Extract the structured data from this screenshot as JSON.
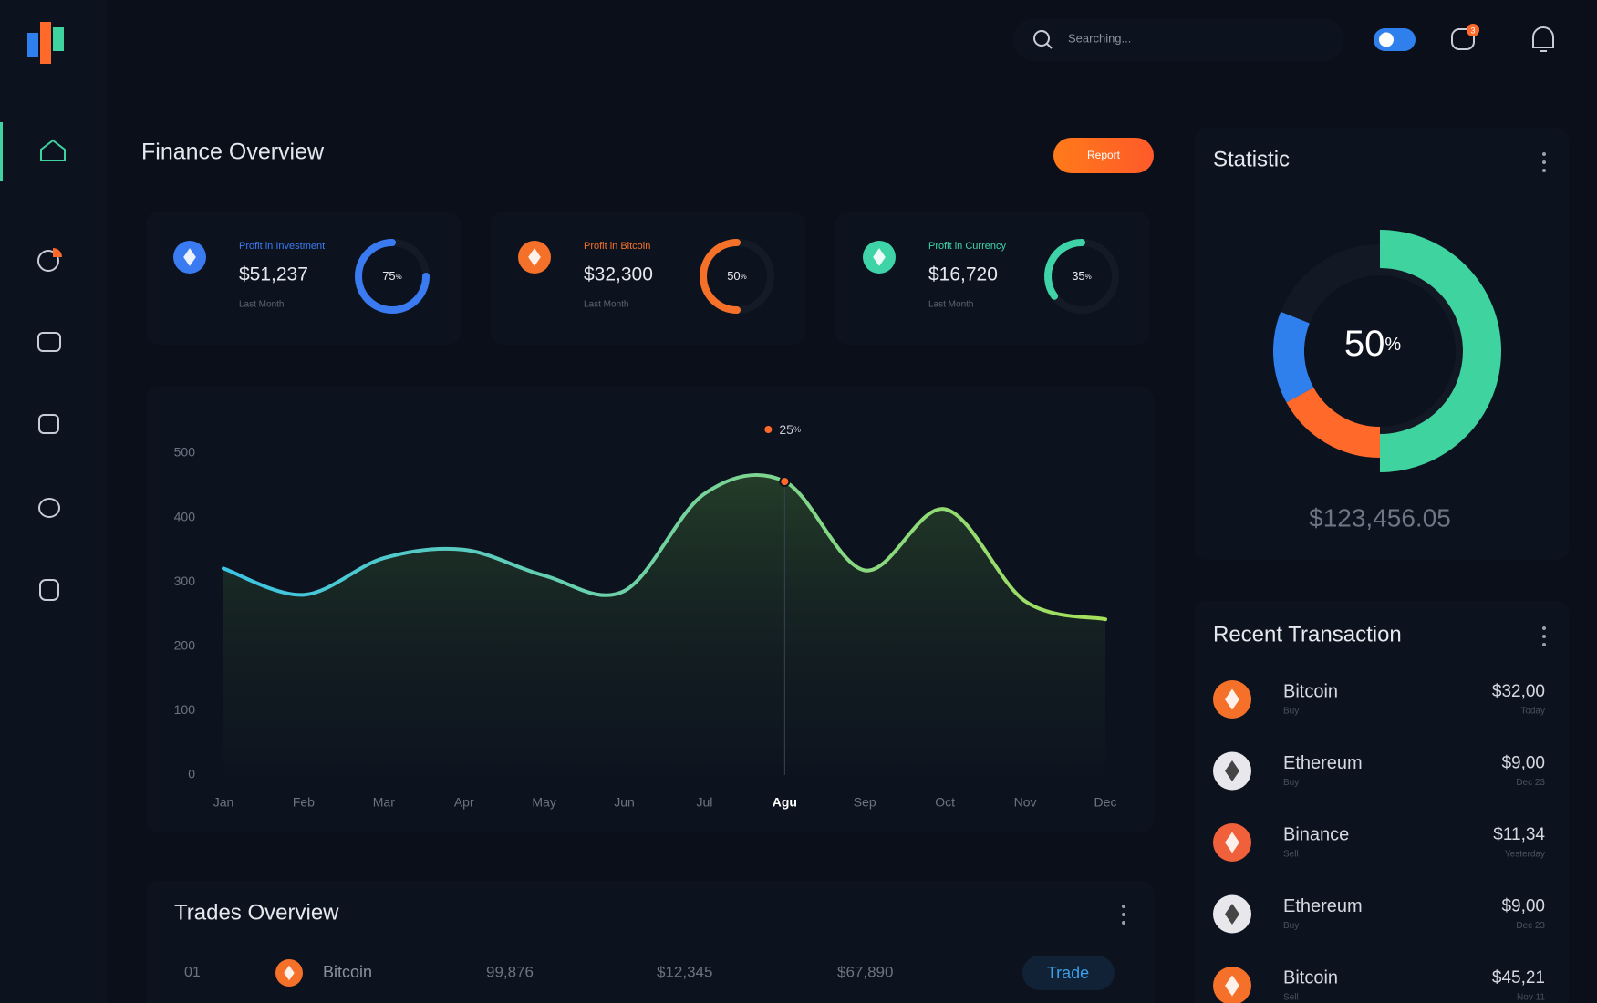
{
  "top_bar": {
    "search_placeholder": "Searching...",
    "notification_count": 3
  },
  "finance_overview": {
    "title": "Finance Overview",
    "report_button": "Report",
    "cards": [
      {
        "label": "Profit in Investment",
        "amount": "$51,237",
        "period": "Last Month",
        "percent": 75,
        "unit": "%",
        "color": "#3b7bf2"
      },
      {
        "label": "Profit in Bitcoin",
        "amount": "$32,300",
        "period": "Last Month",
        "percent": 50,
        "unit": "%",
        "color": "#f5712a"
      },
      {
        "label": "Profit in Currency",
        "amount": "$16,720",
        "period": "Last Month",
        "percent": 35,
        "unit": "%",
        "color": "#3fd4a8"
      }
    ]
  },
  "finance_chart": {
    "type": "line",
    "categories": [
      "Jan",
      "Feb",
      "Mar",
      "Apr",
      "May",
      "Jun",
      "Jul",
      "Agu",
      "Sep",
      "Oct",
      "Nov",
      "Dec"
    ],
    "values": [
      321,
      280,
      337,
      350,
      310,
      286,
      437,
      456,
      318,
      413,
      270,
      242
    ],
    "ylim": [
      0,
      500
    ],
    "yticks": [
      0,
      100,
      200,
      300,
      400,
      500
    ],
    "colors": [
      "#3cc4e6",
      "#a6e05a"
    ],
    "highlight_index": 7,
    "tooltip": {
      "value": 25,
      "unit": "%"
    }
  },
  "statistic": {
    "title": "Statistic",
    "percent": 50,
    "unit": "%",
    "total": "$123,456.05",
    "segments": [
      {
        "value": 50,
        "color": "#3fd3a0"
      },
      {
        "value": 17,
        "color": "#ff6a2b"
      },
      {
        "value": 14,
        "color": "#2f80ed"
      }
    ]
  },
  "trades_overview": {
    "title": "Trades Overview",
    "rows": [
      {
        "rank": "01",
        "coin": "Bitcoin",
        "volume": "99,876",
        "price": "$12,345",
        "total": "$67,890",
        "action": "Trade",
        "color": "#f5712a"
      }
    ]
  },
  "recent_transaction": {
    "title": "Recent Transaction",
    "items": [
      {
        "coin": "Bitcoin",
        "type": "Buy",
        "amount": "$32,00",
        "date": "Today",
        "color": "#f5712a"
      },
      {
        "coin": "Ethereum",
        "type": "Buy",
        "amount": "$9,00",
        "date": "Dec 23",
        "color": "#e8e8ec"
      },
      {
        "coin": "Binance",
        "type": "Sell",
        "amount": "$11,34",
        "date": "Yesterday",
        "color": "#f0603a"
      },
      {
        "coin": "Ethereum",
        "type": "Buy",
        "amount": "$9,00",
        "date": "Dec 23",
        "color": "#e8e8ec"
      },
      {
        "coin": "Bitcoin",
        "type": "Sell",
        "amount": "$45,21",
        "date": "Nov 11",
        "color": "#f5712a"
      }
    ]
  }
}
